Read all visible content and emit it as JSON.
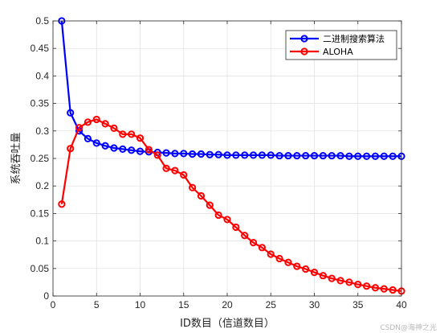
{
  "chart_data": {
    "type": "line",
    "title": "",
    "xlabel": "ID数目（信道数目）",
    "ylabel": "系统吞吐量",
    "xlim": [
      0,
      40
    ],
    "ylim": [
      0,
      0.5
    ],
    "xticks": [
      0,
      5,
      10,
      15,
      20,
      25,
      30,
      35,
      40
    ],
    "yticks": [
      0,
      0.05,
      0.1,
      0.15,
      0.2,
      0.25,
      0.3,
      0.35,
      0.4,
      0.45,
      0.5
    ],
    "grid": true,
    "legend_position": "top-right",
    "x": [
      1,
      2,
      3,
      4,
      5,
      6,
      7,
      8,
      9,
      10,
      11,
      12,
      13,
      14,
      15,
      16,
      17,
      18,
      19,
      20,
      21,
      22,
      23,
      24,
      25,
      26,
      27,
      28,
      29,
      30,
      31,
      32,
      33,
      34,
      35,
      36,
      37,
      38,
      39,
      40
    ],
    "series": [
      {
        "name": "二进制搜索算法",
        "color": "#0000ff",
        "values": [
          0.5,
          0.333,
          0.3,
          0.286,
          0.278,
          0.273,
          0.269,
          0.267,
          0.265,
          0.263,
          0.262,
          0.261,
          0.26,
          0.259,
          0.259,
          0.258,
          0.258,
          0.257,
          0.257,
          0.256,
          0.256,
          0.256,
          0.256,
          0.256,
          0.256,
          0.255,
          0.255,
          0.255,
          0.255,
          0.255,
          0.255,
          0.255,
          0.255,
          0.254,
          0.254,
          0.254,
          0.254,
          0.254,
          0.254,
          0.254
        ]
      },
      {
        "name": "ALOHA",
        "color": "#ff0000",
        "values": [
          0.167,
          0.268,
          0.306,
          0.316,
          0.321,
          0.313,
          0.305,
          0.294,
          0.294,
          0.287,
          0.266,
          0.256,
          0.232,
          0.228,
          0.22,
          0.197,
          0.182,
          0.165,
          0.147,
          0.139,
          0.125,
          0.11,
          0.097,
          0.088,
          0.076,
          0.068,
          0.061,
          0.054,
          0.049,
          0.043,
          0.037,
          0.032,
          0.028,
          0.025,
          0.021,
          0.018,
          0.015,
          0.013,
          0.011,
          0.009
        ]
      }
    ]
  },
  "watermark": "CSDN@海神之光"
}
